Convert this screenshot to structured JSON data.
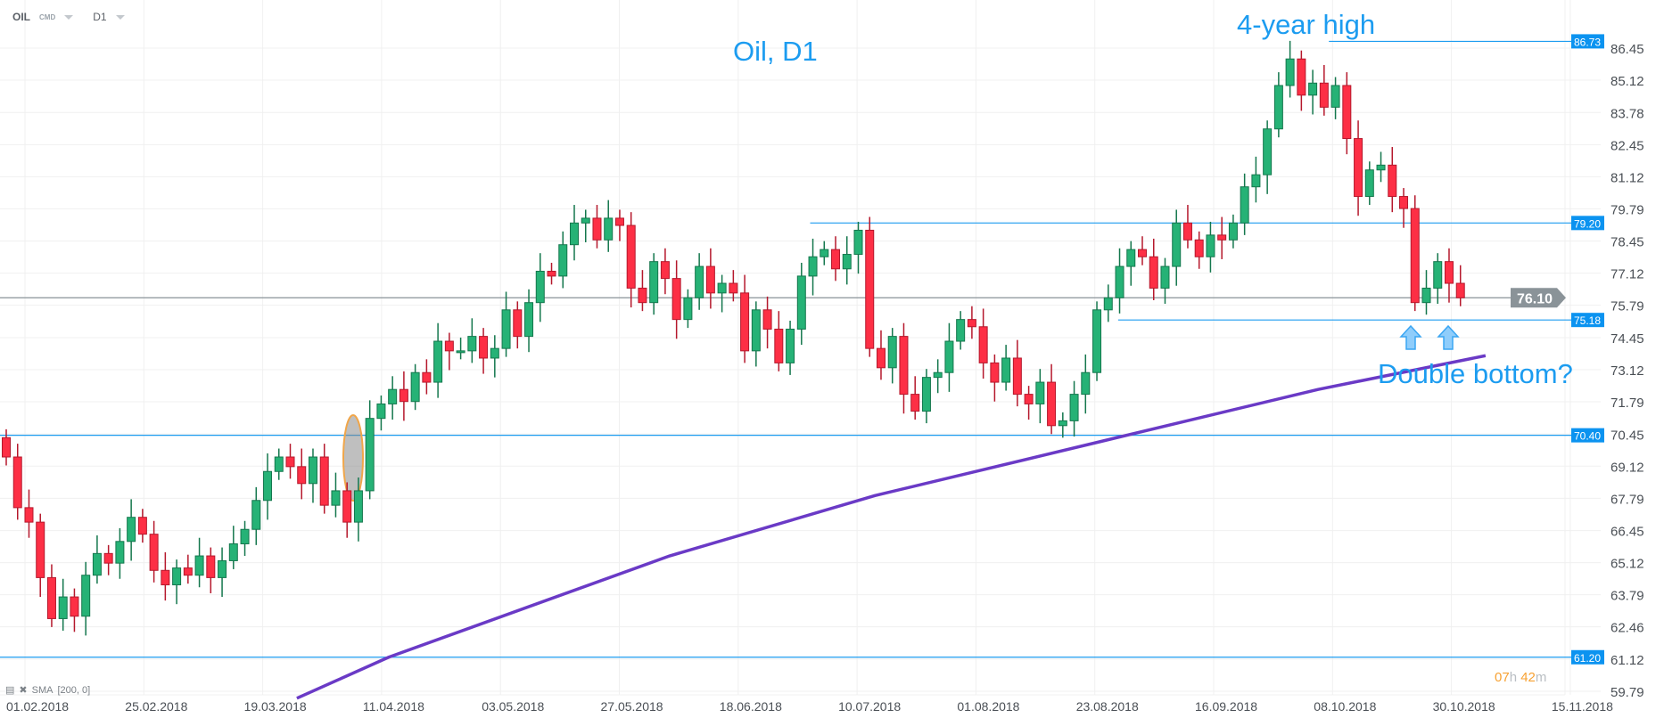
{
  "header": {
    "symbol": "OIL",
    "type": "CMD",
    "timeframe": "D1"
  },
  "indicator_label": {
    "name": "SMA",
    "params": "[200,  0]"
  },
  "timer": {
    "hours": "07",
    "h": "h",
    "minutes": "42",
    "m": "m"
  },
  "annotations": {
    "title": "Oil, D1",
    "high": "4-year high",
    "double_bottom": "Double bottom?"
  },
  "colors": {
    "up": "#26b276",
    "down": "#fd2f45",
    "sma": "#6a3ac6",
    "level": "#1c9cf0",
    "current": "#8a9398",
    "highlight": "#f0a64a"
  },
  "chart_data": {
    "type": "candlestick",
    "title": "",
    "ylim": [
      59.79,
      86.73
    ],
    "grid": true,
    "y_ticks": [
      "86.45",
      "85.12",
      "83.78",
      "82.45",
      "81.12",
      "79.79",
      "78.45",
      "77.12",
      "75.79",
      "74.45",
      "73.12",
      "71.79",
      "70.45",
      "69.12",
      "67.79",
      "66.45",
      "65.12",
      "63.79",
      "62.46",
      "61.12",
      "59.79"
    ],
    "x_ticks": [
      "01.02.2018",
      "25.02.2018",
      "19.03.2018",
      "11.04.2018",
      "03.05.2018",
      "27.05.2018",
      "18.06.2018",
      "10.07.2018",
      "01.08.2018",
      "23.08.2018",
      "16.09.2018",
      "08.10.2018",
      "30.10.2018",
      "15.11.2018"
    ],
    "close": [
      69.5,
      67.4,
      66.8,
      64.5,
      62.8,
      63.7,
      62.9,
      64.6,
      65.5,
      65.1,
      66.0,
      67.0,
      66.3,
      64.8,
      64.2,
      64.9,
      64.6,
      65.4,
      64.5,
      65.2,
      65.9,
      66.5,
      67.7,
      68.9,
      69.5,
      69.1,
      68.4,
      69.5,
      67.5,
      68.1,
      66.8,
      68.1,
      71.1,
      71.7,
      72.3,
      71.8,
      73.0,
      72.6,
      74.3,
      73.9,
      73.9,
      74.5,
      73.6,
      74.0,
      75.6,
      74.5,
      75.9,
      77.2,
      77.0,
      78.3,
      79.2,
      79.4,
      78.5,
      79.4,
      79.1,
      76.5,
      75.9,
      77.6,
      76.9,
      75.2,
      76.1,
      77.4,
      76.3,
      76.7,
      76.3,
      73.9,
      75.6,
      74.8,
      73.4,
      74.8,
      77.0,
      77.8,
      78.1,
      77.3,
      77.9,
      78.9,
      74.0,
      73.2,
      74.5,
      72.1,
      71.4,
      72.8,
      73.0,
      74.3,
      75.2,
      74.9,
      73.4,
      72.6,
      73.6,
      72.1,
      71.7,
      72.6,
      70.8,
      71.0,
      72.1,
      73.0,
      75.6,
      76.1,
      77.4,
      78.1,
      77.8,
      76.5,
      77.4,
      79.2,
      78.5,
      77.8,
      78.7,
      78.5,
      79.2,
      80.7,
      81.2,
      83.1,
      84.9,
      86.0,
      84.5,
      85.0,
      84.0,
      84.9,
      82.7,
      80.3,
      81.4,
      81.6,
      80.3,
      79.8,
      75.9,
      76.5,
      77.6,
      76.7,
      76.1
    ],
    "sma_200": {
      "name": "SMA",
      "points": [
        {
          "date": "2018-03-22",
          "value": 59.5
        },
        {
          "date": "2018-04-08",
          "value": 61.2
        },
        {
          "date": "2018-05-30",
          "value": 65.4
        },
        {
          "date": "2018-07-07",
          "value": 67.9
        },
        {
          "date": "2018-08-17",
          "value": 70.1
        },
        {
          "date": "2018-09-27",
          "value": 72.3
        },
        {
          "date": "2018-10-28",
          "value": 73.7
        }
      ]
    },
    "levels": [
      {
        "value": 86.73,
        "label": "86.73",
        "from_date": "2018-09-29"
      },
      {
        "value": 79.2,
        "label": "79.20",
        "from_date": "2018-06-25"
      },
      {
        "value": 75.18,
        "label": "75.18",
        "from_date": "2018-08-21"
      },
      {
        "value": 70.4,
        "label": "70.40"
      },
      {
        "value": 61.2,
        "label": "61.20"
      }
    ],
    "current_price": {
      "value": 76.1,
      "label": "76.10"
    }
  }
}
